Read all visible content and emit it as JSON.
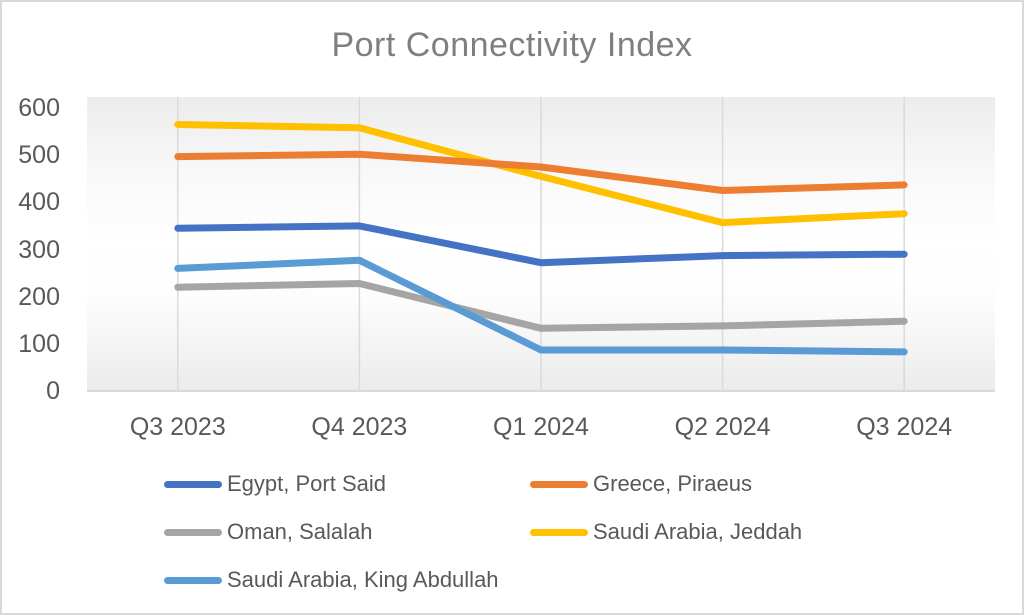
{
  "title": "Port Connectivity Index",
  "chart_data": {
    "type": "line",
    "title": "Port Connectivity Index",
    "categories": [
      "Q3 2023",
      "Q4 2023",
      "Q1 2024",
      "Q2 2024",
      "Q3 2024"
    ],
    "series": [
      {
        "name": "Egypt, Port Said",
        "color": "#4472C4",
        "values": [
          345,
          350,
          272,
          287,
          290
        ]
      },
      {
        "name": "Greece, Piraeus",
        "color": "#ED7D31",
        "values": [
          497,
          502,
          475,
          425,
          437
        ]
      },
      {
        "name": "Oman, Salalah",
        "color": "#A5A5A5",
        "values": [
          220,
          228,
          133,
          138,
          148
        ]
      },
      {
        "name": "Saudi Arabia, Jeddah",
        "color": "#FFC000",
        "values": [
          565,
          558,
          455,
          357,
          376
        ]
      },
      {
        "name": "Saudi Arabia, King Abdullah",
        "color": "#5B9BD5",
        "values": [
          260,
          277,
          87,
          87,
          83
        ]
      }
    ],
    "y_ticks": [
      0,
      100,
      200,
      300,
      400,
      500,
      600
    ],
    "ylim": [
      0,
      600
    ],
    "grid": "vertical-category-gridlines",
    "legend_position": "bottom"
  },
  "colors": {
    "title_text": "#7f7f7f",
    "axis_text": "#595959",
    "gridline": "#dadada",
    "axis_line": "#d9d9d9",
    "border": "#d9d9d9"
  }
}
